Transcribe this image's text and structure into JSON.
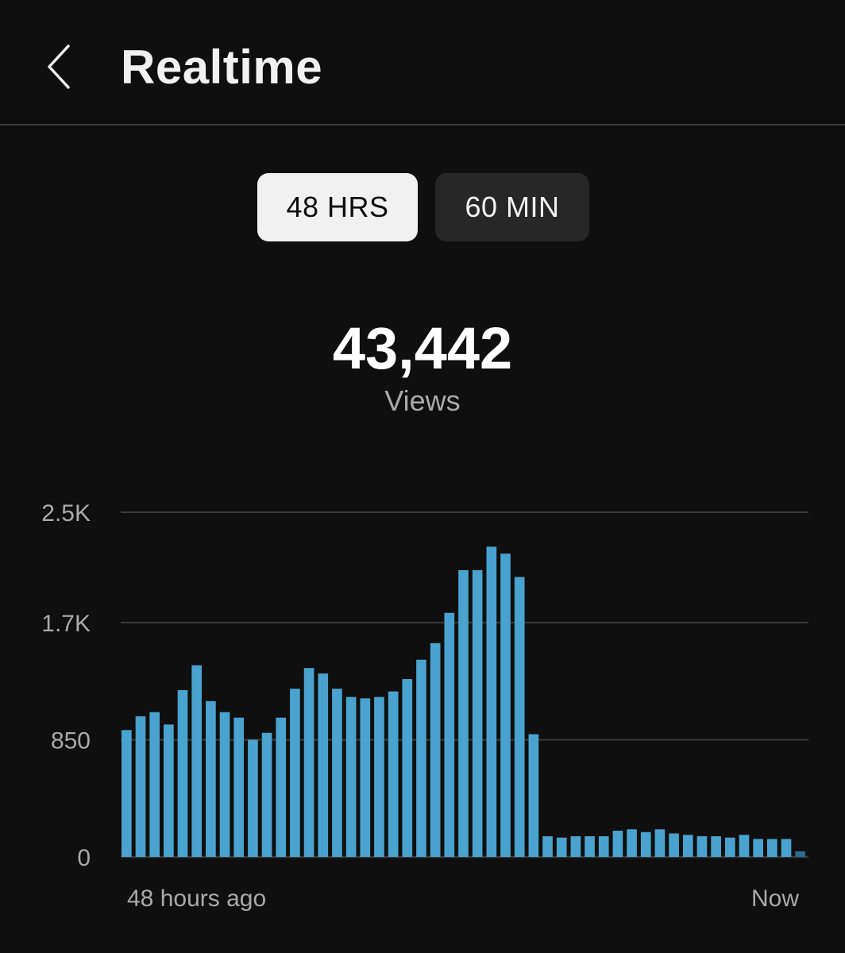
{
  "header": {
    "title": "Realtime",
    "back_icon": "chevron-left-icon"
  },
  "range_toggle": {
    "options": [
      {
        "label": "48 HRS",
        "active": true
      },
      {
        "label": "60 MIN",
        "active": false
      }
    ]
  },
  "metric": {
    "value": "43,442",
    "label": "Views"
  },
  "colors": {
    "background": "#0f0f0f",
    "bar": "#4aa3cf",
    "bar_current": "#2a6f8f",
    "gridline": "#3a3a3a",
    "active_tab_bg": "#f1f1f1",
    "inactive_tab_bg": "#272727"
  },
  "chart_data": {
    "type": "bar",
    "ylim": [
      0,
      2500
    ],
    "y_ticks": [
      {
        "value": 2500,
        "label": "2.5K"
      },
      {
        "value": 1700,
        "label": "1.7K"
      },
      {
        "value": 850,
        "label": "850"
      },
      {
        "value": 0,
        "label": "0"
      }
    ],
    "x_labels": {
      "start": "48 hours ago",
      "end": "Now"
    },
    "grid": true,
    "values": [
      920,
      1020,
      1050,
      960,
      1210,
      1390,
      1130,
      1050,
      1010,
      850,
      900,
      1010,
      1220,
      1370,
      1330,
      1220,
      1160,
      1150,
      1160,
      1200,
      1290,
      1430,
      1550,
      1770,
      2080,
      2080,
      2250,
      2200,
      2030,
      890,
      150,
      140,
      150,
      150,
      150,
      190,
      200,
      180,
      200,
      170,
      160,
      150,
      150,
      140,
      160,
      130,
      130,
      130,
      40
    ]
  }
}
